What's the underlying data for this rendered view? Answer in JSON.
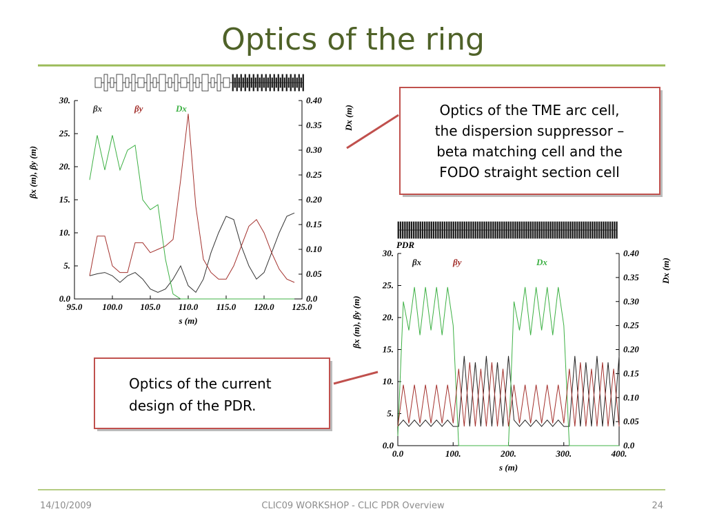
{
  "title": "Optics of the ring",
  "callouts": [
    {
      "lines": [
        "Optics of the TME arc cell,",
        "the dispersion suppressor –",
        "beta matching cell and the",
        "FODO straight section cell"
      ]
    },
    {
      "lines": [
        "Optics of the current",
        "design of the PDR."
      ]
    }
  ],
  "footer": {
    "date": "14/10/2009",
    "center": "CLIC09 WORKSHOP - CLIC PDR Overview",
    "page": "24"
  },
  "chart_data": [
    {
      "type": "line",
      "xlabel": "s (m)",
      "ylabel": "βx (m), βy (m)",
      "y2label": "Dx (m)",
      "xlim": [
        95,
        125
      ],
      "ylim": [
        0,
        30
      ],
      "y2lim": [
        0,
        0.4
      ],
      "xticks": [
        {
          "value": 95,
          "label": "95.0"
        },
        {
          "value": 100,
          "label": "100.0"
        },
        {
          "value": 105,
          "label": "105.0"
        },
        {
          "value": 110,
          "label": "110.0"
        },
        {
          "value": 115,
          "label": "115.0"
        },
        {
          "value": 120,
          "label": "120.0"
        },
        {
          "value": 125,
          "label": "125.0"
        }
      ],
      "yticks": [
        {
          "value": 0,
          "label": "0.0"
        },
        {
          "value": 5,
          "label": "5."
        },
        {
          "value": 10,
          "label": "10."
        },
        {
          "value": 15,
          "label": "15."
        },
        {
          "value": 20,
          "label": "20."
        },
        {
          "value": 25,
          "label": "25."
        },
        {
          "value": 30,
          "label": "30."
        }
      ],
      "y2ticks": [
        {
          "value": 0,
          "label": "0.0"
        },
        0.05,
        {
          "value": 0.1,
          "label": "0.10"
        },
        0.15,
        {
          "value": 0.2,
          "label": "0.20"
        },
        0.25,
        {
          "value": 0.3,
          "label": "0.30"
        },
        0.35,
        {
          "value": 0.4,
          "label": "0.40"
        }
      ],
      "x": [
        97,
        98,
        99,
        100,
        101,
        102,
        103,
        104,
        105,
        106,
        107,
        108,
        109,
        110,
        111,
        112,
        113,
        114,
        115,
        116,
        117,
        118,
        119,
        120,
        121,
        122,
        123,
        124
      ],
      "series": [
        {
          "name": "βx",
          "color": "#333333",
          "values": [
            3.5,
            3.8,
            4,
            3.5,
            2.5,
            3.5,
            4,
            3,
            1.5,
            1,
            1.5,
            3,
            5,
            2,
            1,
            3,
            7,
            10,
            12.5,
            12,
            8,
            5,
            3,
            4,
            7,
            10,
            12.5,
            13
          ]
        },
        {
          "name": "βy",
          "color": "#a3302c",
          "values": [
            3.5,
            9.5,
            9.5,
            5,
            4,
            4,
            8.5,
            8.5,
            7,
            7.5,
            8,
            9,
            18,
            28,
            14,
            6,
            4,
            3,
            3,
            5,
            8,
            11,
            12,
            10,
            7,
            4.5,
            3,
            2.5
          ]
        },
        {
          "name": "Dx",
          "color": "#3cb043",
          "axis": "y2",
          "values": [
            0.24,
            0.33,
            0.26,
            0.33,
            0.26,
            0.3,
            0.31,
            0.2,
            0.18,
            0.19,
            0.08,
            0.01,
            0,
            0,
            0,
            0,
            0,
            0,
            0,
            0,
            0,
            0,
            0,
            0,
            0,
            0,
            0,
            0
          ]
        }
      ]
    },
    {
      "type": "line",
      "annotation": "PDR",
      "xlabel": "s (m)",
      "ylabel": "βx (m), βy (m)",
      "y2label": "Dx (m)",
      "xlim": [
        0,
        400
      ],
      "ylim": [
        0,
        30
      ],
      "y2lim": [
        0,
        0.4
      ],
      "xticks": [
        {
          "value": 0,
          "label": "0.0"
        },
        {
          "value": 100,
          "label": "100."
        },
        {
          "value": 200,
          "label": "200."
        },
        {
          "value": 300,
          "label": "300."
        },
        {
          "value": 400,
          "label": "400."
        }
      ],
      "yticks": [
        {
          "value": 0,
          "label": "0.0"
        },
        {
          "value": 5,
          "label": "5."
        },
        {
          "value": 10,
          "label": "10."
        },
        {
          "value": 15,
          "label": "15."
        },
        {
          "value": 20,
          "label": "20."
        },
        {
          "value": 25,
          "label": "25."
        },
        {
          "value": 30,
          "label": "30."
        }
      ],
      "y2ticks": [
        {
          "value": 0,
          "label": "0.0"
        },
        0.05,
        {
          "value": 0.1,
          "label": "0.10"
        },
        0.15,
        {
          "value": 0.2,
          "label": "0.20"
        },
        0.25,
        {
          "value": 0.3,
          "label": "0.30"
        },
        0.35,
        {
          "value": 0.4,
          "label": "0.40"
        }
      ],
      "x": [
        0,
        10,
        20,
        30,
        40,
        50,
        60,
        70,
        80,
        90,
        100,
        110,
        120,
        130,
        140,
        150,
        160,
        170,
        180,
        190,
        200,
        210,
        220,
        230,
        240,
        250,
        260,
        270,
        280,
        290,
        300,
        310,
        320,
        330,
        340,
        350,
        360,
        370,
        380,
        390,
        400
      ],
      "series": [
        {
          "name": "βx",
          "color": "#222222",
          "values": [
            3,
            4,
            3,
            4,
            3,
            4,
            3,
            4,
            3,
            4,
            3,
            3,
            14,
            3,
            13,
            3,
            14,
            3,
            13,
            3,
            14,
            4,
            3,
            4,
            3,
            4,
            3,
            4,
            3,
            4,
            3,
            3,
            14,
            3,
            13,
            3,
            14,
            3,
            13,
            3,
            14
          ]
        },
        {
          "name": "Dx",
          "color": "#3cb043",
          "axis": "y2",
          "values": [
            0.02,
            0.3,
            0.24,
            0.33,
            0.23,
            0.33,
            0.24,
            0.33,
            0.23,
            0.33,
            0.25,
            0,
            0,
            0,
            0,
            0,
            0,
            0,
            0,
            0,
            0,
            0.3,
            0.24,
            0.33,
            0.23,
            0.33,
            0.24,
            0.33,
            0.23,
            0.33,
            0.25,
            0,
            0,
            0,
            0,
            0,
            0,
            0,
            0,
            0,
            0
          ]
        },
        {
          "name": "βy",
          "color": "#a3302c",
          "values": [
            3,
            9.5,
            3.5,
            9.5,
            3.5,
            9.5,
            3.5,
            9.5,
            3.5,
            9.5,
            3.5,
            12,
            3,
            13,
            3,
            12,
            3,
            13,
            3,
            12,
            3,
            9.5,
            3.5,
            9.5,
            3.5,
            9.5,
            3.5,
            9.5,
            3.5,
            9.5,
            3.5,
            12,
            3,
            13,
            3,
            12,
            3,
            13,
            3,
            12,
            3
          ]
        }
      ]
    }
  ]
}
